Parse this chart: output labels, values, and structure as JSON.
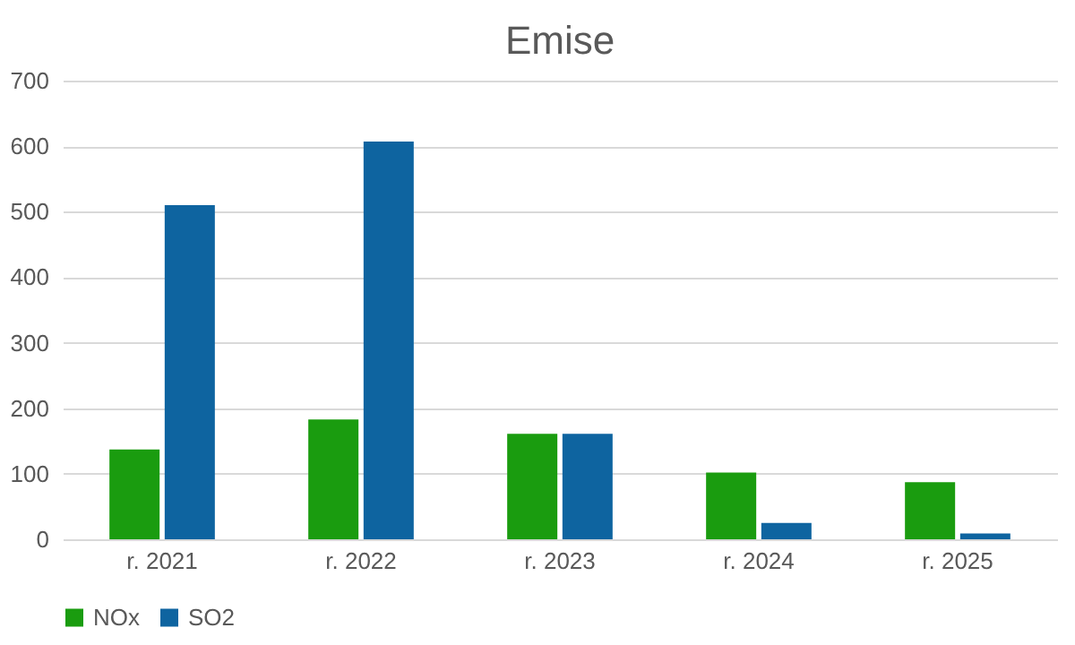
{
  "chart_data": {
    "type": "bar",
    "title": "Emise",
    "categories": [
      "r. 2021",
      "r. 2022",
      "r. 2023",
      "r. 2024",
      "r. 2025"
    ],
    "series": [
      {
        "name": "NOx",
        "color": "#1a9c0f",
        "values": [
          137,
          183,
          161,
          102,
          87
        ]
      },
      {
        "name": "SO2",
        "color": "#0e64a0",
        "values": [
          510,
          607,
          161,
          25,
          9
        ]
      }
    ],
    "ylim": [
      0,
      700
    ],
    "yticks": [
      0,
      100,
      200,
      300,
      400,
      500,
      600,
      700
    ],
    "grid": "y",
    "legend": "bottom"
  }
}
